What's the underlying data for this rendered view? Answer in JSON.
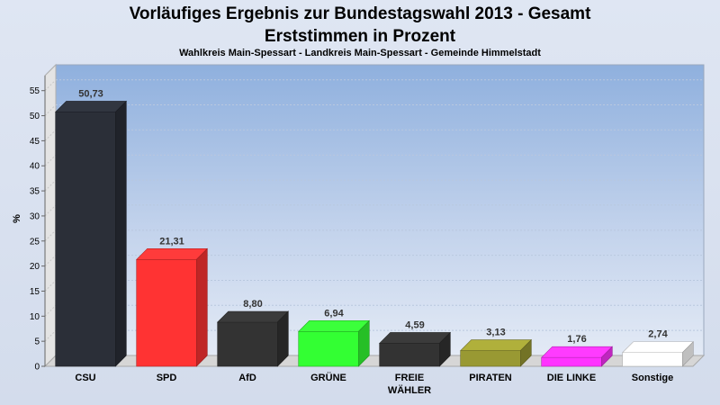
{
  "chart_data": {
    "type": "bar",
    "title_line1": "Vorläufiges Ergebnis zur Bundestagswahl 2013 - Gesamt",
    "title_line2": "Erststimmen in Prozent",
    "subtitle": "Wahlkreis Main-Spessart - Landkreis Main-Spessart - Gemeinde Himmelstadt",
    "ylabel": "%",
    "ylim": [
      0,
      58
    ],
    "yticks": [
      0,
      5,
      10,
      15,
      20,
      25,
      30,
      35,
      40,
      45,
      50,
      55
    ],
    "grid": true,
    "categories": [
      {
        "lines": [
          "CSU"
        ]
      },
      {
        "lines": [
          "SPD"
        ]
      },
      {
        "lines": [
          "AfD"
        ]
      },
      {
        "lines": [
          "GRÜNE"
        ]
      },
      {
        "lines": [
          "FREIE",
          "WÄHLER"
        ]
      },
      {
        "lines": [
          "PIRATEN"
        ]
      },
      {
        "lines": [
          "DIE LINKE"
        ]
      },
      {
        "lines": [
          "Sonstige"
        ]
      }
    ],
    "values": [
      50.73,
      21.31,
      8.8,
      6.94,
      4.59,
      3.13,
      1.76,
      2.74
    ],
    "value_labels": [
      "50,73",
      "21,31",
      "8,80",
      "6,94",
      "4,59",
      "3,13",
      "1,76",
      "2,74"
    ],
    "colors": [
      "#2b2f38",
      "#ff3333",
      "#333333",
      "#33ff33",
      "#333333",
      "#999933",
      "#ff33ff",
      "#ffffff"
    ]
  }
}
